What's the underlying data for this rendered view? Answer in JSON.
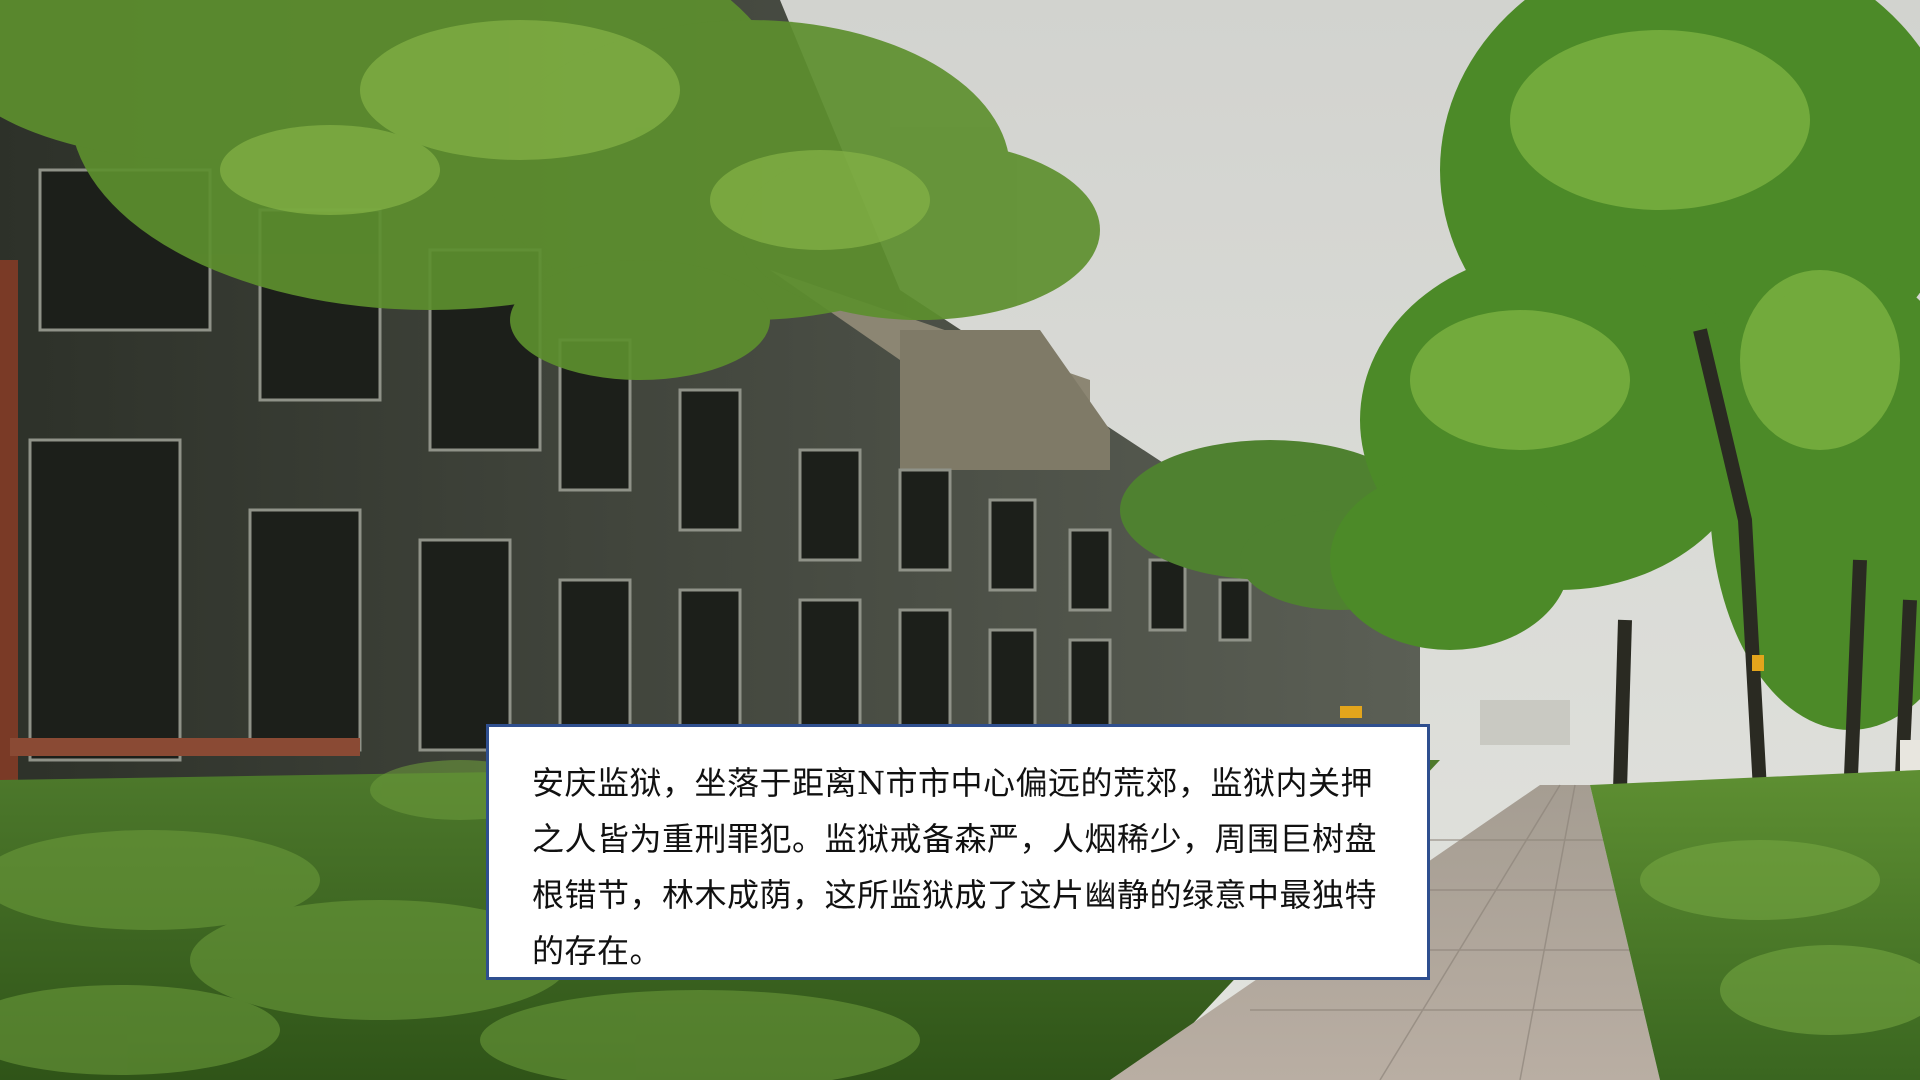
{
  "slide": {
    "background": {
      "description_icon": "prison-building-tree-lined-path-photo",
      "colors": {
        "sky": "#d6d8d4",
        "foliage": "#4f7a2a",
        "building": "#3c403a",
        "path": "#b5aaa0"
      }
    },
    "caption": {
      "text": "安庆监狱，坐落于距离N市市中心偏远的荒郊，监狱内关押之人皆为重刑罪犯。监狱戒备森严，人烟稀少，周围巨树盘根错节，林木成荫，这所监狱成了这片幽静的绿意中最独特的存在。",
      "border_color": "#2f4f8f",
      "background_color": "#ffffff"
    }
  }
}
